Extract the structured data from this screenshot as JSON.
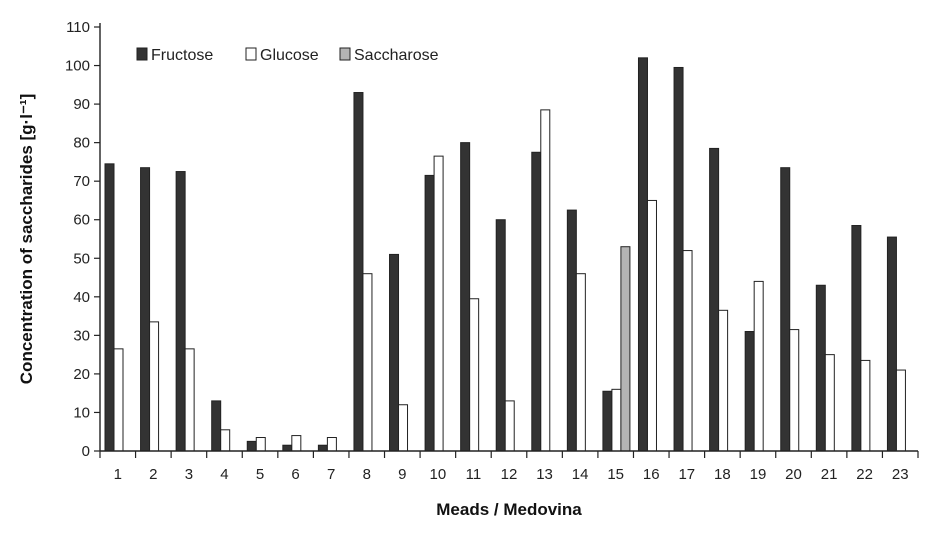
{
  "chart_data": {
    "type": "bar",
    "xlabel": "Meads / Medovina",
    "ylabel": "Concentration of saccharides [g·l⁻¹]",
    "ylim": [
      0,
      110
    ],
    "yticks": [
      0,
      10,
      20,
      30,
      40,
      50,
      60,
      70,
      80,
      90,
      100,
      110
    ],
    "grid": false,
    "legend_position": "top-left",
    "categories": [
      "1",
      "2",
      "3",
      "4",
      "5",
      "6",
      "7",
      "8",
      "9",
      "10",
      "11",
      "12",
      "13",
      "14",
      "15",
      "16",
      "17",
      "18",
      "19",
      "20",
      "21",
      "22",
      "23"
    ],
    "series": [
      {
        "name": "Fructose",
        "color": "#333333",
        "values": [
          74.5,
          73.5,
          72.5,
          13,
          2.5,
          1.5,
          1.5,
          93,
          51,
          71.5,
          80,
          60,
          77.5,
          62.5,
          15.5,
          102,
          99.5,
          78.5,
          31,
          73.5,
          43,
          58.5,
          55.5
        ]
      },
      {
        "name": "Glucose",
        "color": "#ffffff",
        "values": [
          26.5,
          33.5,
          26.5,
          5.5,
          3.5,
          4,
          3.5,
          46,
          12,
          76.5,
          39.5,
          13,
          88.5,
          46,
          16,
          65,
          52,
          36.5,
          44,
          31.5,
          25,
          23.5,
          21
        ]
      },
      {
        "name": "Saccharose",
        "color": "#b4b4b4",
        "values": [
          0,
          0,
          0,
          0,
          0,
          0,
          0,
          0,
          0,
          0,
          0,
          0,
          0,
          0,
          53,
          0,
          0,
          0,
          0,
          0,
          0,
          0,
          0
        ]
      }
    ]
  }
}
